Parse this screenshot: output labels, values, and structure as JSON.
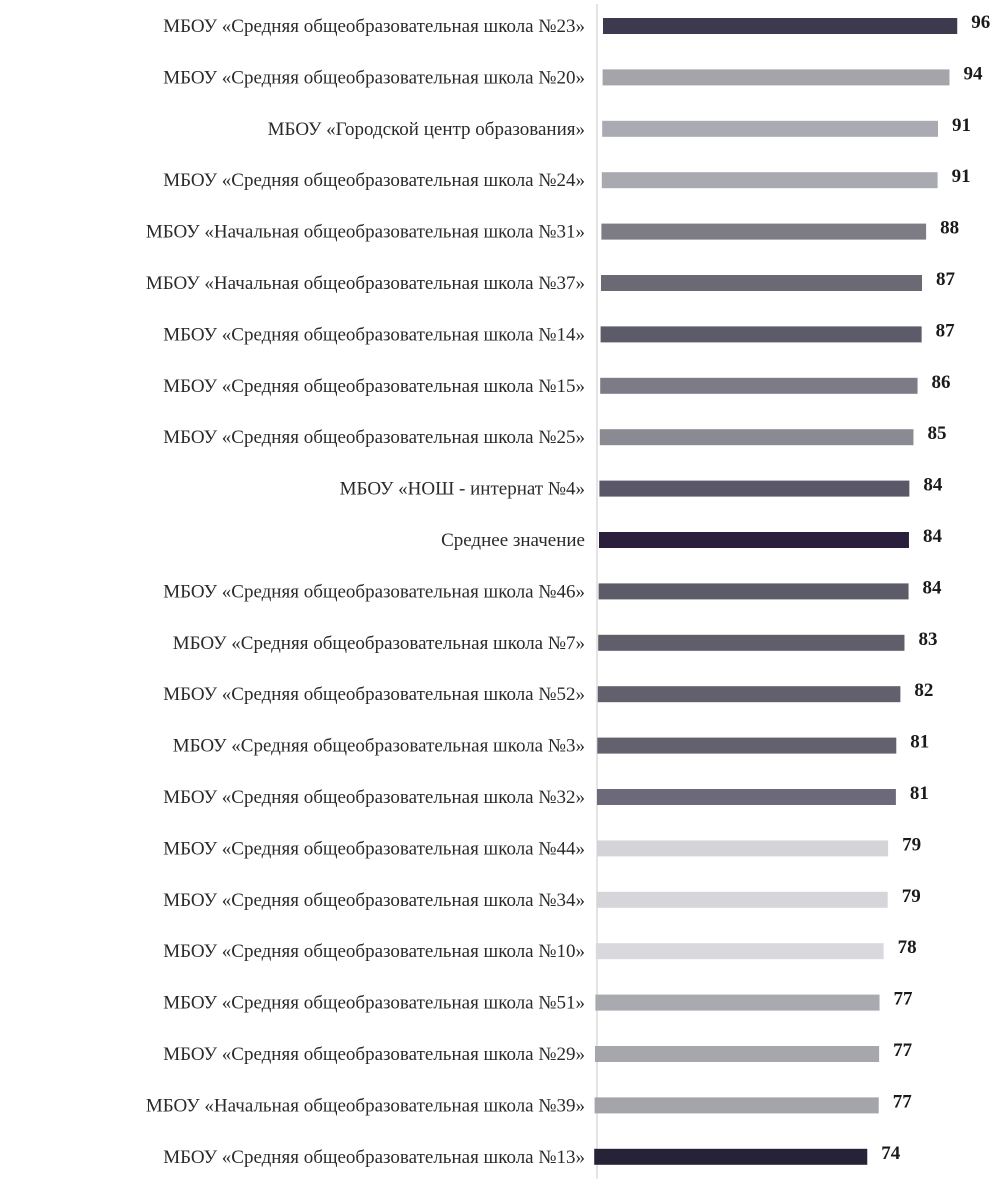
{
  "chart_data": {
    "type": "bar",
    "orientation": "horizontal",
    "categories": [
      "МБОУ «Средняя общеобразовательная школа  №23»",
      "МБОУ «Средняя общеобразовательная школа  №20»",
      "МБОУ «Городской центр образования»",
      "МБОУ «Средняя общеобразовательная школа  №24»",
      "МБОУ «Начальная общеобразовательная школа  №31»",
      "МБОУ «Начальная общеобразовательная школа  №37»",
      "МБОУ «Средняя общеобразовательная школа  №14»",
      "МБОУ «Средняя общеобразовательная школа  №15»",
      "МБОУ «Средняя общеобразовательная школа  №25»",
      "МБОУ «НОШ - интернат №4»",
      "Среднее значение",
      "МБОУ «Средняя общеобразовательная школа  №46»",
      "МБОУ «Средняя общеобразовательная школа  №7»",
      "МБОУ «Средняя общеобразовательная школа  №52»",
      "МБОУ «Средняя общеобразовательная школа  №3»",
      "МБОУ «Средняя общеобразовательная школа  №32»",
      "МБОУ «Средняя общеобразовательная школа  №44»",
      "МБОУ «Средняя общеобразовательная школа  №34»",
      "МБОУ «Средняя общеобразовательная школа  №10»",
      "МБОУ «Средняя общеобразовательная школа  №51»",
      "МБОУ «Средняя общеобразовательная школа  №29»",
      "МБОУ «Начальная общеобразовательная школа  №39»",
      "МБОУ «Средняя общеобразовательная школа  №13»"
    ],
    "values": [
      96,
      94,
      91,
      91,
      88,
      87,
      87,
      86,
      85,
      84,
      84,
      84,
      83,
      82,
      81,
      81,
      79,
      79,
      78,
      77,
      77,
      77,
      74
    ],
    "bar_colors": [
      "#3d3a4f",
      "#a4a4aa",
      "#aaaab2",
      "#a9a9b0",
      "#7d7c85",
      "#6a6974",
      "#5c5b68",
      "#7d7c86",
      "#8a8a92",
      "#5a5868",
      "#2b1f3e",
      "#5c5b68",
      "#5f5e6a",
      "#61606c",
      "#62616d",
      "#6c6a7a",
      "#d4d4d8",
      "#d6d6da",
      "#d9d9dd",
      "#a9a9b0",
      "#a6a6ad",
      "#a4a4ab",
      "#262238"
    ],
    "title": "",
    "xlabel": "",
    "ylabel": "",
    "grid": false,
    "legend": "none",
    "axis_line_color": "#c8c8c8"
  }
}
